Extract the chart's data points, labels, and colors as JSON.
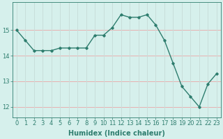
{
  "x": [
    0,
    1,
    2,
    3,
    4,
    5,
    6,
    7,
    8,
    9,
    10,
    11,
    12,
    13,
    14,
    15,
    16,
    17,
    18,
    19,
    20,
    21,
    22,
    23
  ],
  "y": [
    15.0,
    14.6,
    14.2,
    14.2,
    14.2,
    14.3,
    14.3,
    14.3,
    14.3,
    14.8,
    14.8,
    15.1,
    15.6,
    15.5,
    15.5,
    15.6,
    15.2,
    14.6,
    13.7,
    12.8,
    12.4,
    12.0,
    12.9,
    13.3
  ],
  "line_color": "#2e7d6e",
  "marker": "D",
  "marker_size": 1.8,
  "bg_color": "#d6f0ec",
  "grid_color_v": "#c8deda",
  "grid_color_h": "#e8b0b0",
  "xlabel": "Humidex (Indice chaleur)",
  "ylim": [
    11.6,
    16.1
  ],
  "yticks": [
    12,
    13,
    14,
    15
  ],
  "xticks": [
    0,
    1,
    2,
    3,
    4,
    5,
    6,
    7,
    8,
    9,
    10,
    11,
    12,
    13,
    14,
    15,
    16,
    17,
    18,
    19,
    20,
    21,
    22,
    23
  ],
  "xlabel_fontsize": 7,
  "tick_fontsize": 6,
  "line_width": 1.0,
  "xlim": [
    -0.5,
    23.5
  ]
}
